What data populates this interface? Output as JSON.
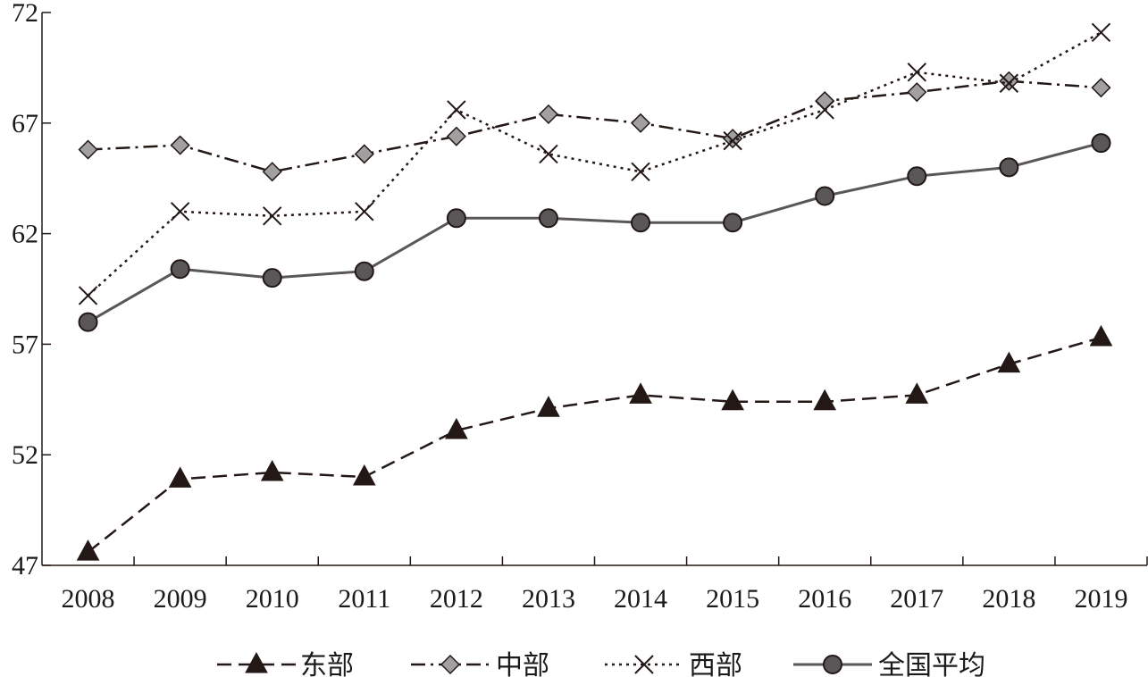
{
  "chart_data": {
    "type": "line",
    "categories": [
      "2008",
      "2009",
      "2010",
      "2011",
      "2012",
      "2013",
      "2014",
      "2015",
      "2016",
      "2017",
      "2018",
      "2019"
    ],
    "ylim": [
      47,
      72
    ],
    "yticks": [
      47,
      52,
      57,
      62,
      67,
      72
    ],
    "grid": false,
    "legend_position": "bottom",
    "series": [
      {
        "name": "东部",
        "marker": "triangle",
        "dash": "dashed",
        "color": "#231815",
        "values": [
          47.6,
          50.9,
          51.2,
          51.0,
          53.1,
          54.1,
          54.7,
          54.4,
          54.4,
          54.7,
          56.1,
          57.3
        ]
      },
      {
        "name": "中部",
        "marker": "diamond",
        "dash": "dashdot",
        "color": "#231815",
        "values": [
          65.8,
          66.0,
          64.8,
          65.6,
          66.4,
          67.4,
          67.0,
          66.3,
          68.0,
          68.4,
          68.9,
          68.6
        ]
      },
      {
        "name": "西部",
        "marker": "x",
        "dash": "dotted",
        "color": "#231815",
        "values": [
          59.2,
          63.0,
          62.8,
          63.0,
          67.6,
          65.6,
          64.8,
          66.2,
          67.6,
          69.3,
          68.8,
          71.1
        ]
      },
      {
        "name": "全国平均",
        "marker": "circle",
        "dash": "solid",
        "color": "#595757",
        "values": [
          58.0,
          60.4,
          60.0,
          60.3,
          62.7,
          62.7,
          62.5,
          62.5,
          63.7,
          64.6,
          65.0,
          66.1
        ]
      }
    ]
  }
}
